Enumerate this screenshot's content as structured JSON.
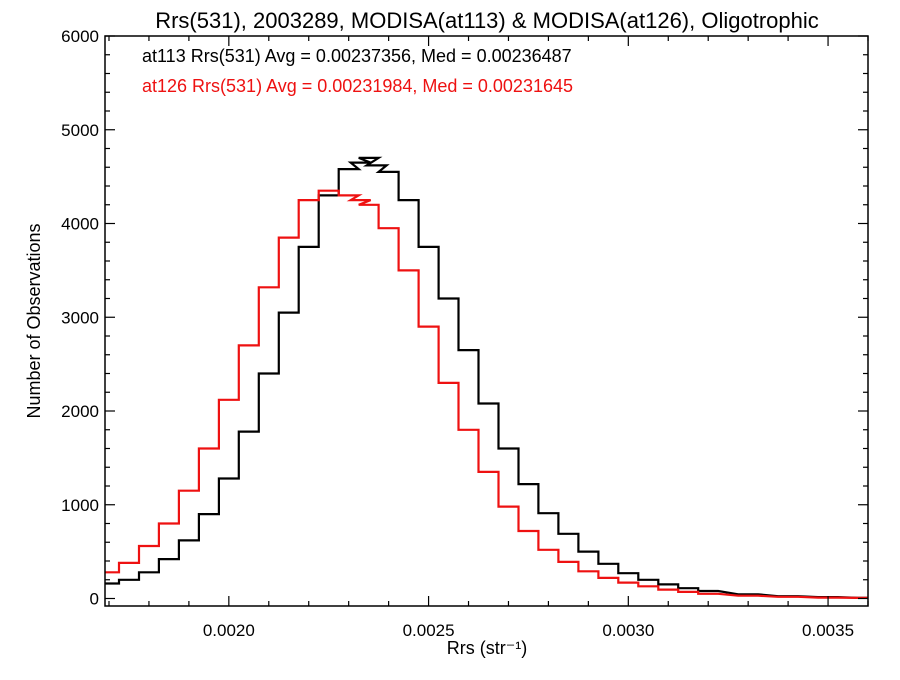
{
  "chart_data": {
    "type": "line",
    "step": true,
    "title": "Rrs(531), 2003289, MODISA(at113) & MODISA(at126), Oligotrophic",
    "xlabel": "Rrs (str⁻¹)",
    "ylabel": "Number of Observations",
    "xlim": [
      0.00169,
      0.0036
    ],
    "ylim": [
      -80,
      6000
    ],
    "xticks": [
      0.002,
      0.0025,
      0.003,
      0.0035
    ],
    "xtick_labels": [
      "0.0020",
      "0.0025",
      "0.0030",
      "0.0035"
    ],
    "yticks": [
      0,
      1000,
      2000,
      3000,
      4000,
      5000,
      6000
    ],
    "ytick_labels": [
      "0",
      "1000",
      "2000",
      "3000",
      "4000",
      "5000",
      "6000"
    ],
    "grid": false,
    "annotations": [
      {
        "text": "at113 Rrs(531) Avg = 0.00237356, Med = 0.00236487",
        "color": "#000000"
      },
      {
        "text": "at126 Rrs(531) Avg = 0.00231984, Med = 0.00231645",
        "color": "#ee1111"
      }
    ],
    "series": [
      {
        "color": "#000000",
        "x": [
          0.0017,
          0.00175,
          0.0018,
          0.00185,
          0.0019,
          0.00195,
          0.002,
          0.00205,
          0.0021,
          0.00215,
          0.0022,
          0.00225,
          0.0023,
          0.00233,
          0.00235,
          0.00237,
          0.0024,
          0.00245,
          0.0025,
          0.00255,
          0.0026,
          0.00265,
          0.0027,
          0.00275,
          0.0028,
          0.00285,
          0.0029,
          0.00295,
          0.003,
          0.00305,
          0.0031,
          0.00315,
          0.0032,
          0.0033,
          0.0034,
          0.0035,
          0.0036
        ],
        "values": [
          160,
          200,
          280,
          420,
          620,
          900,
          1280,
          1780,
          2400,
          3050,
          3750,
          4300,
          4580,
          4650,
          4700,
          4620,
          4550,
          4250,
          3750,
          3200,
          2650,
          2080,
          1600,
          1220,
          910,
          690,
          500,
          370,
          270,
          200,
          150,
          110,
          80,
          45,
          25,
          15,
          8
        ]
      },
      {
        "color": "#ee1111",
        "x": [
          0.0017,
          0.00175,
          0.0018,
          0.00185,
          0.0019,
          0.00195,
          0.002,
          0.00205,
          0.0021,
          0.00215,
          0.0022,
          0.00225,
          0.0023,
          0.00233,
          0.00235,
          0.0024,
          0.00245,
          0.0025,
          0.00255,
          0.0026,
          0.00265,
          0.0027,
          0.00275,
          0.0028,
          0.00285,
          0.0029,
          0.00295,
          0.003,
          0.00305,
          0.0031,
          0.00315,
          0.0032,
          0.0033,
          0.0034,
          0.0035,
          0.0036
        ],
        "values": [
          280,
          380,
          560,
          800,
          1150,
          1600,
          2120,
          2700,
          3320,
          3850,
          4250,
          4350,
          4300,
          4250,
          4200,
          3950,
          3500,
          2900,
          2300,
          1800,
          1350,
          980,
          720,
          520,
          390,
          290,
          220,
          170,
          130,
          95,
          70,
          50,
          30,
          18,
          10,
          6
        ]
      }
    ]
  }
}
